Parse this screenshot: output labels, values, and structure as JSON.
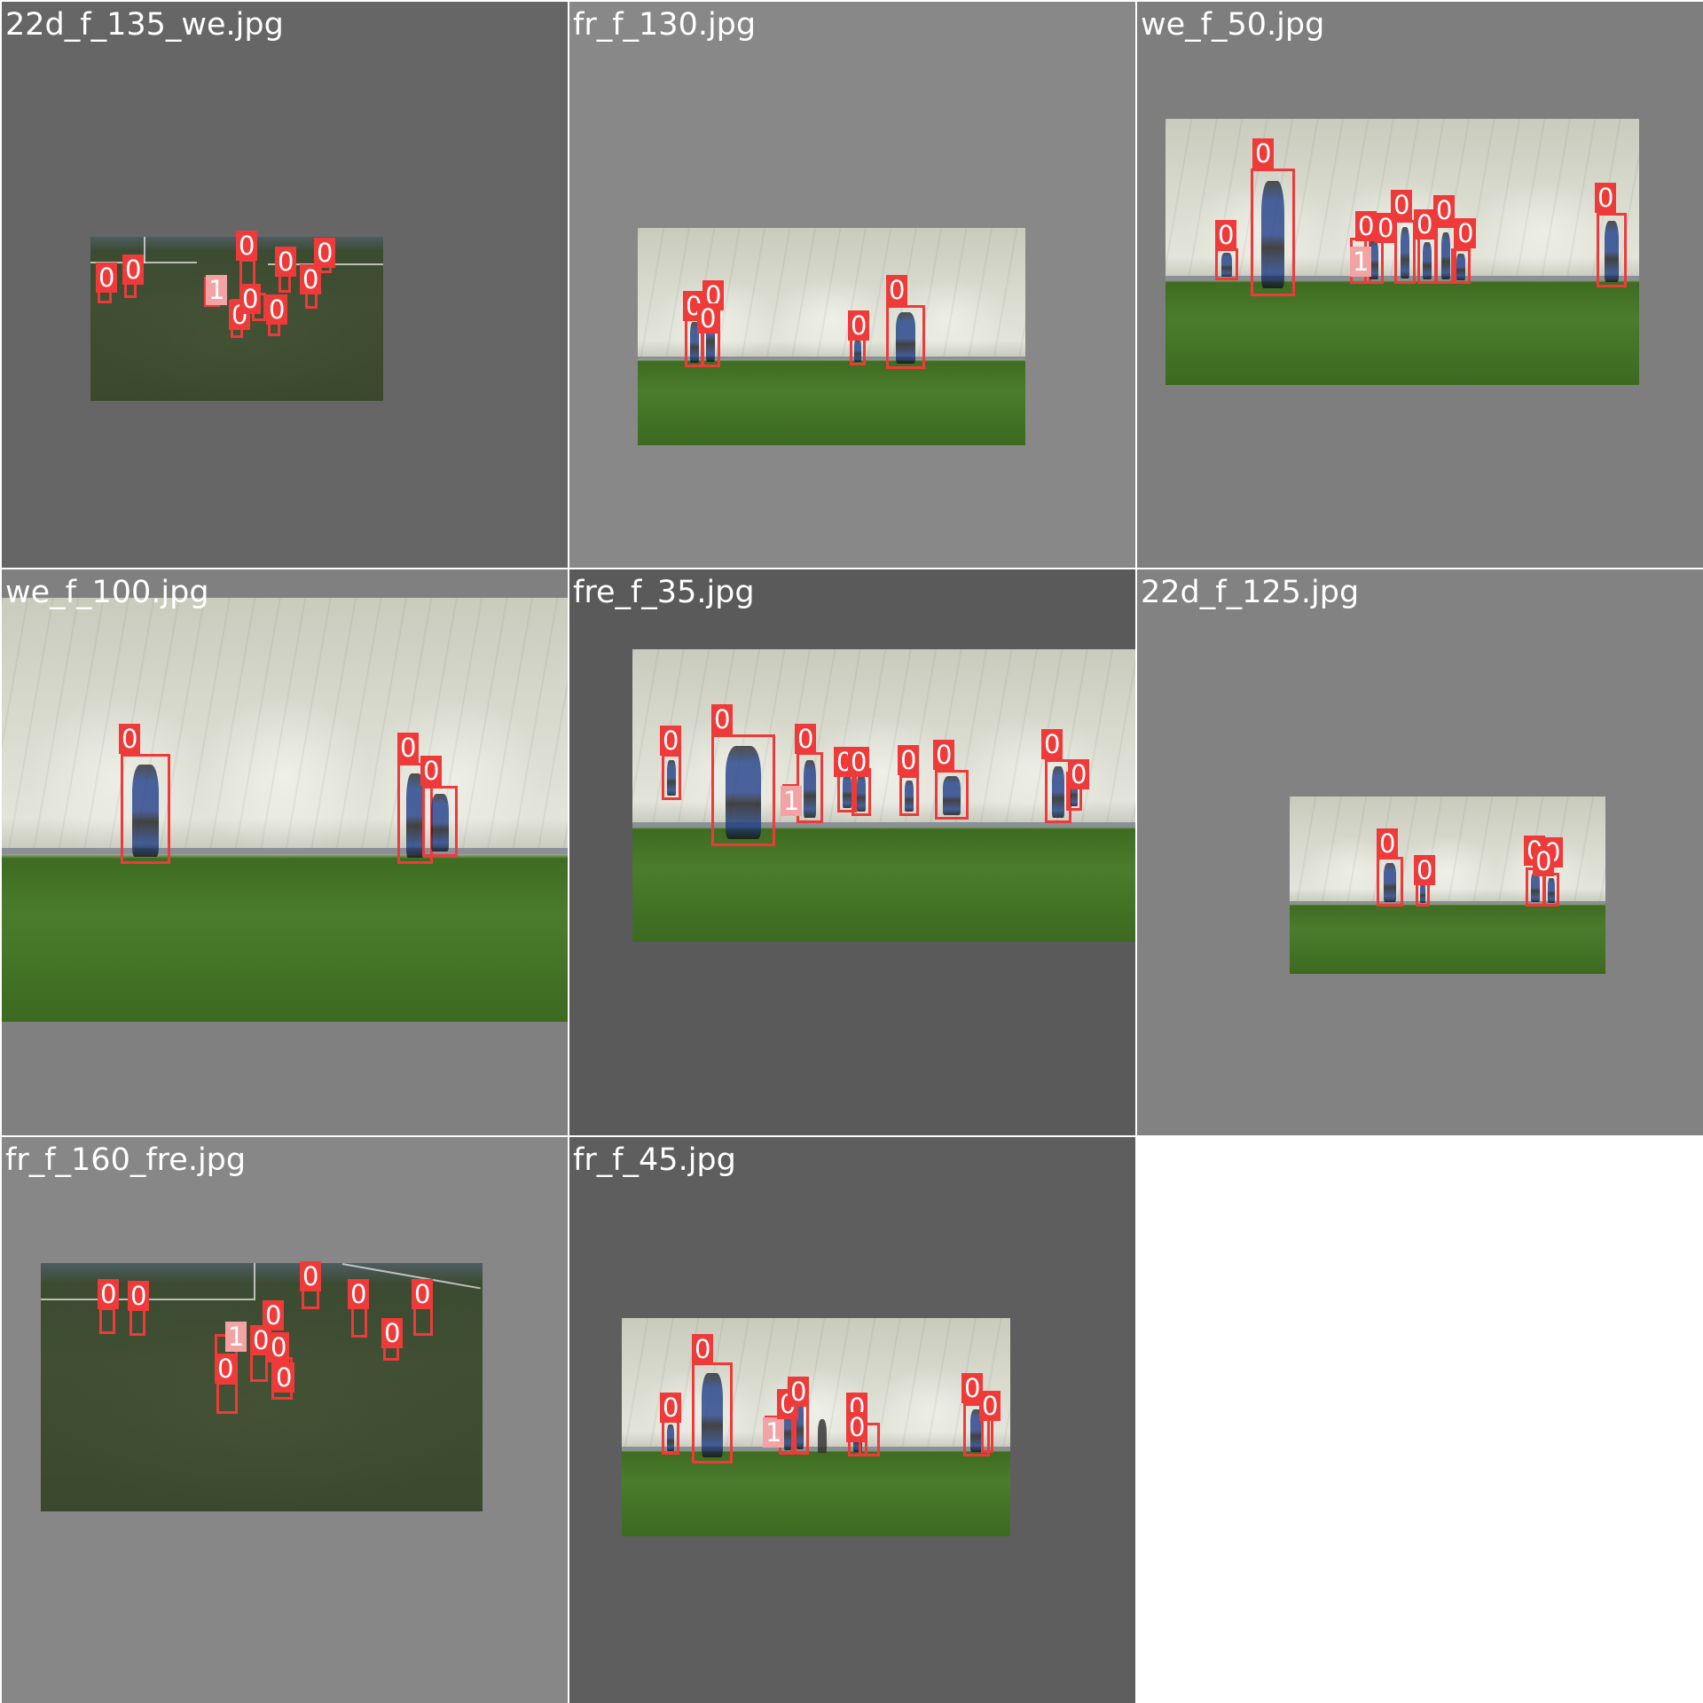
{
  "tiles": [
    {
      "title": "22d_f_135_we.jpg",
      "background": "#666666"
    },
    {
      "title": "fr_f_130.jpg",
      "background": "#888888"
    },
    {
      "title": "we_f_50.jpg",
      "background": "#7e7e7e"
    },
    {
      "title": "we_f_100.jpg",
      "background": "#808080"
    },
    {
      "title": "fre_f_35.jpg",
      "background": "#5a5a5a"
    },
    {
      "title": "22d_f_125.jpg",
      "background": "#828282"
    },
    {
      "title": "fr_f_160_fre.jpg",
      "background": "#878787"
    },
    {
      "title": "fr_f_45.jpg",
      "background": "#5e5e5e"
    }
  ],
  "class_labels": {
    "person": "0",
    "ball": "1"
  },
  "colors": {
    "box_person": "#ef3a3a",
    "box_ball": "#f3a3a3",
    "grid_gap": "#ffffff"
  }
}
